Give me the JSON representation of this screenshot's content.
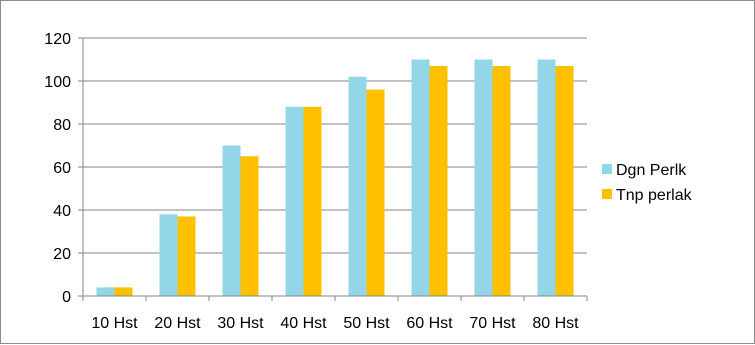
{
  "chart_data": {
    "type": "bar",
    "categories": [
      "10 Hst",
      "20 Hst",
      "30 Hst",
      "40 Hst",
      "50 Hst",
      "60 Hst",
      "70 Hst",
      "80 Hst"
    ],
    "series": [
      {
        "name": "Dgn Perlk",
        "color": "#93d6e8",
        "values": [
          4,
          38,
          70,
          88,
          102,
          110,
          110,
          110
        ]
      },
      {
        "name": "Tnp perlak",
        "color": "#ffc000",
        "values": [
          4,
          37,
          65,
          88,
          96,
          107,
          107,
          107
        ]
      }
    ],
    "ylim": [
      0,
      120
    ],
    "yticks": [
      0,
      20,
      40,
      60,
      80,
      100,
      120
    ],
    "grid": true,
    "legend_position": "right",
    "title": "",
    "xlabel": "",
    "ylabel": ""
  }
}
